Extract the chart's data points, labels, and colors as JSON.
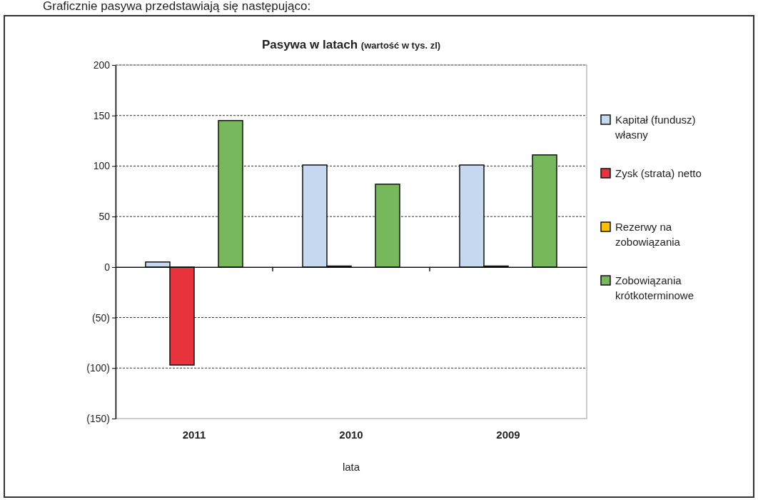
{
  "chart_data": {
    "type": "bar",
    "title": "Pasywa w latach (wartość w tys. zl)",
    "xlabel": "lata",
    "annotations": [
      "Graficznie pasywa przedstawiają się następująco:"
    ],
    "categories": [
      "2011",
      "2010",
      "2009"
    ],
    "series": [
      {
        "name": "Kapitał (fundusz) własny",
        "color": "#c6d9f1",
        "values": [
          5,
          101,
          101
        ]
      },
      {
        "name": "Zysk (strata) netto",
        "color": "#e8323c",
        "values": [
          -97,
          1,
          1
        ]
      },
      {
        "name": "Rezerwy na zobowiązania",
        "color": "#ffc000",
        "values": [
          0,
          0,
          0
        ]
      },
      {
        "name": "Zobowiązania krótkoterminowe",
        "color": "#77b85c",
        "values": [
          145,
          82,
          111
        ]
      }
    ],
    "ylim": [
      -150,
      200
    ],
    "yticks": [
      {
        "value": -150,
        "label": "(150)"
      },
      {
        "value": -100,
        "label": "(100)"
      },
      {
        "value": -50,
        "label": "(50)"
      },
      0,
      50,
      100,
      150,
      200
    ],
    "grid": "y",
    "legend": "right"
  }
}
